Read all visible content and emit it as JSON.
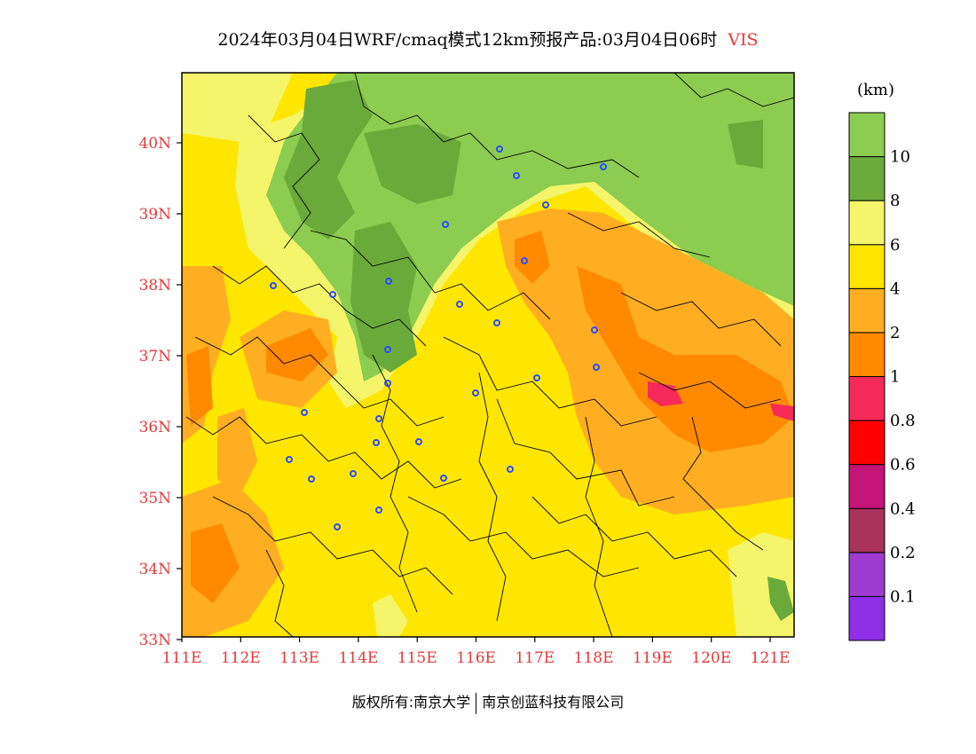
{
  "title": {
    "text": "2024年03月04日WRF/cmaq模式12km预报产品:03月04日06时",
    "variable": "VIS"
  },
  "unit": "(km)",
  "lat_labels": [
    "40N",
    "39N",
    "38N",
    "37N",
    "36N",
    "35N",
    "34N",
    "33N"
  ],
  "lon_labels": [
    "111E",
    "112E",
    "113E",
    "114E",
    "115E",
    "116E",
    "117E",
    "118E",
    "119E",
    "120E",
    "121E"
  ],
  "colorbar": {
    "colors": [
      "#8e2ee6",
      "#9e3cd0",
      "#a8325a",
      "#c41478",
      "#ff0000",
      "#f52a5a",
      "#ff8a00",
      "#ffae22",
      "#ffe600",
      "#f5f56b",
      "#6aaa3a",
      "#8ccc50"
    ],
    "labels": [
      "0.1",
      "0.2",
      "0.4",
      "0.6",
      "0.8",
      "1",
      "2",
      "4",
      "6",
      "8",
      "10"
    ]
  },
  "footer": {
    "left": "版权所有:南京大学",
    "right": "南京创蓝科技有限公司"
  }
}
